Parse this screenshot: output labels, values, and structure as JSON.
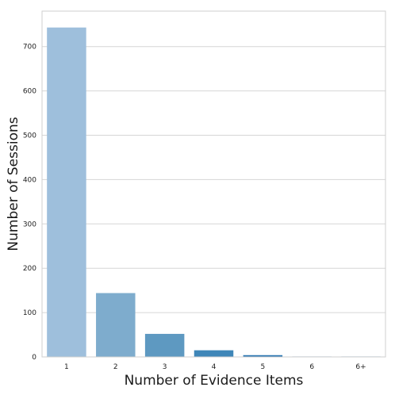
{
  "chart_data": {
    "type": "bar",
    "categories": [
      "1",
      "2",
      "3",
      "4",
      "5",
      "6",
      "6+"
    ],
    "values": [
      743,
      144,
      52,
      15,
      4,
      1,
      1
    ],
    "xlabel": "Number of Evidence Items",
    "ylabel": "Number of Sessions",
    "ylim": [
      0,
      780
    ],
    "yticks": [
      0,
      100,
      200,
      300,
      400,
      500,
      600,
      700
    ],
    "grid": true,
    "colors": [
      "#9ebfdc",
      "#7eaccd",
      "#5e99c1",
      "#3f86b8",
      "#2c77b2",
      "#1f6aa8",
      "#16609e"
    ]
  }
}
